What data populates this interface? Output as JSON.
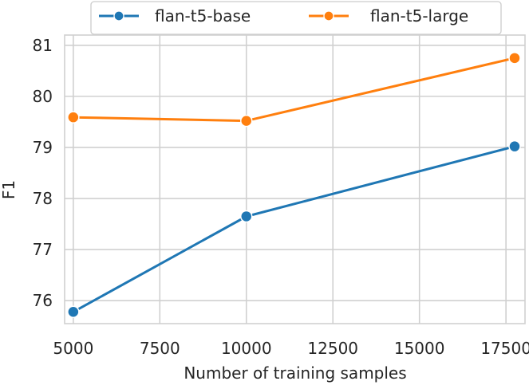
{
  "chart_data": {
    "type": "line",
    "xlabel": "Number of training samples",
    "ylabel": "F1",
    "x_ticks": [
      5000,
      7500,
      10000,
      12500,
      15000,
      17500
    ],
    "y_ticks": [
      76,
      77,
      78,
      79,
      80,
      81
    ],
    "xlim": [
      4750,
      18050
    ],
    "ylim": [
      75.55,
      81.2
    ],
    "grid": true,
    "legend_position": "top",
    "series": [
      {
        "name": "flan-t5-base",
        "color": "#1f77b4",
        "x": [
          5000,
          10000,
          17750
        ],
        "y": [
          75.78,
          77.65,
          79.02
        ]
      },
      {
        "name": "flan-t5-large",
        "color": "#ff7f0e",
        "x": [
          5000,
          10000,
          17750
        ],
        "y": [
          79.59,
          79.52,
          80.75
        ]
      }
    ]
  }
}
